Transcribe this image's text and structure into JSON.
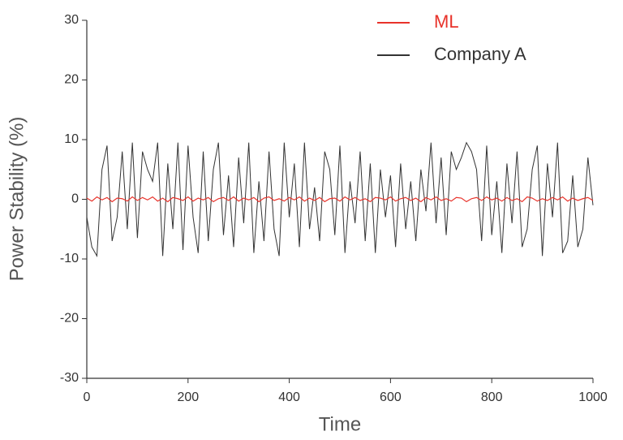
{
  "chart_data": {
    "type": "line",
    "xlabel": "Time",
    "ylabel": "Power Stability (%)",
    "x": [
      0,
      10,
      20,
      30,
      40,
      50,
      60,
      70,
      80,
      90,
      100,
      110,
      120,
      130,
      140,
      150,
      160,
      170,
      180,
      190,
      200,
      210,
      220,
      230,
      240,
      250,
      260,
      270,
      280,
      290,
      300,
      310,
      320,
      330,
      340,
      350,
      360,
      370,
      380,
      390,
      400,
      410,
      420,
      430,
      440,
      450,
      460,
      470,
      480,
      490,
      500,
      510,
      520,
      530,
      540,
      550,
      560,
      570,
      580,
      590,
      600,
      610,
      620,
      630,
      640,
      650,
      660,
      670,
      680,
      690,
      700,
      710,
      720,
      730,
      740,
      750,
      760,
      770,
      780,
      790,
      800,
      810,
      820,
      830,
      840,
      850,
      860,
      870,
      880,
      890,
      900,
      910,
      920,
      930,
      940,
      950,
      960,
      970,
      980,
      990,
      1000
    ],
    "series": [
      {
        "name": "ML",
        "color": "#e8322a",
        "values": [
          0.2,
          -0.3,
          0.4,
          -0.1,
          0.3,
          -0.4,
          0.2,
          0.1,
          -0.3,
          0.4,
          -0.2,
          0.3,
          -0.1,
          0.4,
          -0.3,
          0.2,
          -0.4,
          0.3,
          0.1,
          -0.2,
          0.4,
          -0.3,
          0.2,
          -0.1,
          0.3,
          -0.4,
          0.1,
          0.3,
          -0.2,
          0.4,
          -0.3,
          0.2,
          -0.1,
          0.3,
          -0.4,
          0.2,
          0.4,
          -0.2,
          0.1,
          -0.3,
          0.3,
          -0.1,
          0.4,
          -0.3,
          0.2,
          -0.2,
          0.3,
          -0.4,
          0.1,
          0.2,
          -0.3,
          0.4,
          -0.1,
          0.3,
          -0.2,
          0.1,
          -0.4,
          0.3,
          0.2,
          -0.1,
          0.4,
          -0.3,
          0.1,
          0.3,
          -0.2,
          0.2,
          -0.4,
          0.3,
          -0.1,
          0.4,
          -0.2,
          0.1,
          -0.3,
          0.3,
          0.2,
          -0.4,
          0.1,
          0.3,
          -0.2,
          0.4,
          -0.1,
          0.2,
          -0.3,
          0.3,
          -0.2,
          0.1,
          -0.4,
          0.4,
          0.2,
          -0.3,
          0.1,
          -0.2,
          0.3,
          -0.1,
          0.4,
          -0.3,
          0.2,
          -0.2,
          0.1,
          0.3,
          -0.2
        ]
      },
      {
        "name": "Company A",
        "color": "#333333",
        "values": [
          -3,
          -8,
          -9.5,
          5,
          9,
          -7,
          -3,
          8,
          -5,
          9.5,
          -6.5,
          8,
          5,
          3,
          9.5,
          -9.5,
          6,
          -5,
          9.5,
          -8.5,
          9,
          -3,
          -9,
          8,
          -7,
          5,
          9.5,
          -6,
          4,
          -8,
          7,
          -4,
          9.5,
          -9,
          3,
          -7,
          8,
          -5,
          -9.5,
          9.5,
          -3,
          6,
          -8,
          9.5,
          -5,
          2,
          -7,
          8,
          5,
          -6,
          9,
          -9,
          3,
          -4,
          8,
          -7,
          6,
          -9,
          5,
          -3,
          4,
          -8,
          6,
          -5,
          3,
          -7,
          5,
          -2,
          9.5,
          -4,
          7,
          -6,
          8,
          5,
          7,
          9.5,
          8,
          5,
          -7,
          9,
          -6,
          3,
          -9,
          6,
          -4,
          8,
          -8,
          -5,
          5,
          9,
          -9.5,
          6,
          -3,
          9.5,
          -9,
          -7,
          4,
          -8,
          -5,
          7,
          -1
        ]
      }
    ],
    "xlim": [
      0,
      1000
    ],
    "xticks": [
      0,
      200,
      400,
      600,
      800,
      1000
    ],
    "ylim": [
      -30,
      30
    ],
    "yticks": [
      -30,
      -20,
      -10,
      0,
      10,
      20,
      30
    ],
    "legend": "top-right",
    "grid": false
  }
}
